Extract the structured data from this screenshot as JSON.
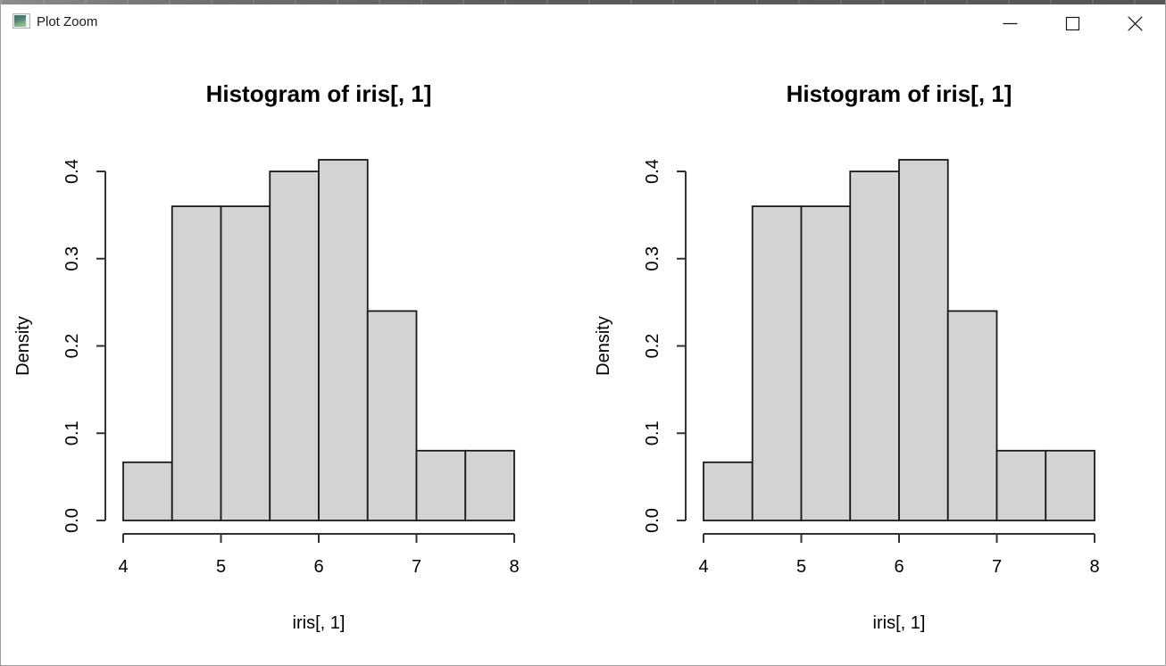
{
  "window": {
    "title": "Plot Zoom",
    "controls": {
      "minimize": "minimize",
      "maximize": "maximize",
      "close": "close"
    }
  },
  "colors": {
    "bar_fill": "#d3d3d3",
    "bar_stroke": "#1a1a1a",
    "axis": "#333333",
    "text": "#000000",
    "titlebar_text": "#1a1a1a",
    "top_strip": "#5c5c5c",
    "window_border": "#9c9c9c"
  },
  "chart_data": [
    {
      "type": "bar",
      "subtype": "histogram",
      "title": "Histogram of iris[, 1]",
      "xlabel": "iris[, 1]",
      "ylabel": "Density",
      "bin_edges": [
        4.0,
        4.5,
        5.0,
        5.5,
        6.0,
        6.5,
        7.0,
        7.5,
        8.0
      ],
      "values": [
        0.0667,
        0.36,
        0.36,
        0.4,
        0.4133,
        0.24,
        0.08,
        0.08
      ],
      "x_ticks": [
        4,
        5,
        6,
        7,
        8
      ],
      "y_ticks": [
        "0.0",
        "0.1",
        "0.2",
        "0.3",
        "0.4"
      ],
      "xlim": [
        4,
        8
      ],
      "ylim": [
        0,
        0.4133
      ],
      "grid": false,
      "legend": null
    },
    {
      "type": "bar",
      "subtype": "histogram",
      "title": "Histogram of iris[, 1]",
      "xlabel": "iris[, 1]",
      "ylabel": "Density",
      "bin_edges": [
        4.0,
        4.5,
        5.0,
        5.5,
        6.0,
        6.5,
        7.0,
        7.5,
        8.0
      ],
      "values": [
        0.0667,
        0.36,
        0.36,
        0.4,
        0.4133,
        0.24,
        0.08,
        0.08
      ],
      "x_ticks": [
        4,
        5,
        6,
        7,
        8
      ],
      "y_ticks": [
        "0.0",
        "0.1",
        "0.2",
        "0.3",
        "0.4"
      ],
      "xlim": [
        4,
        8
      ],
      "ylim": [
        0,
        0.4133
      ],
      "grid": false,
      "legend": null
    }
  ]
}
